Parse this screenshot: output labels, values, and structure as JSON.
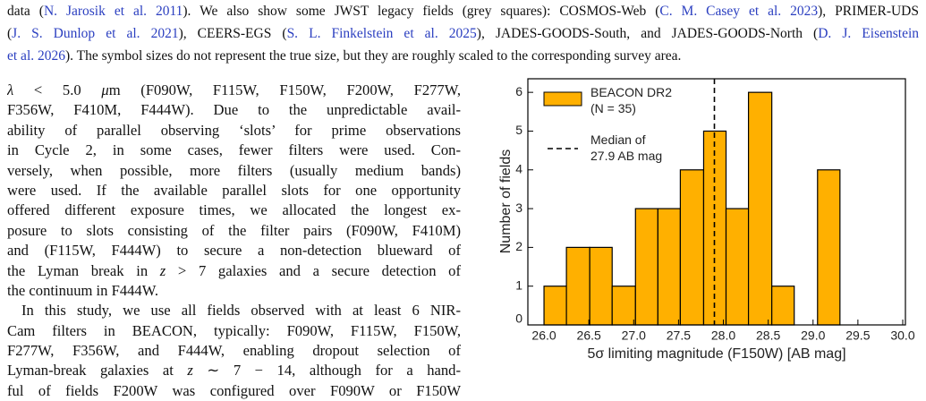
{
  "caption": {
    "lines": [
      [
        {
          "text": "data ("
        },
        {
          "text": "N. Jarosik et al. 2011",
          "cite": true
        },
        {
          "text": "). We also show some JWST legacy fields (grey squares): COSMOS-Web ("
        },
        {
          "text": "C. M. Casey et al. 2023",
          "cite": true
        },
        {
          "text": "), PRIMER-UDS"
        }
      ],
      [
        {
          "text": "("
        },
        {
          "text": "J. S. Dunlop et al. 2021",
          "cite": true
        },
        {
          "text": "), CEERS-EGS ("
        },
        {
          "text": "S. L. Finkelstein et al. 2025",
          "cite": true
        },
        {
          "text": "), JADES-GOODS-South, and JADES-GOODS-North ("
        },
        {
          "text": "D. J. Eisenstein",
          "cite": true
        }
      ],
      [
        {
          "text": "et al. 2026",
          "cite": true
        },
        {
          "text": "). The symbol sizes do not represent the true size, but they are roughly scaled to the corresponding survey area."
        }
      ]
    ]
  },
  "body": {
    "paragraphs": [
      {
        "lines": [
          [
            {
              "text": "λ",
              "italic": true
            },
            {
              "text": " < 5.0 "
            },
            {
              "text": "μ",
              "italic": true
            },
            {
              "text": "m (F090W, F115W, F150W, F200W, F277W,"
            }
          ],
          [
            {
              "text": "F356W, F410M, F444W). Due to the unpredictable avail-"
            }
          ],
          [
            {
              "text": "ability of parallel observing ‘slots’ for prime observations"
            }
          ],
          [
            {
              "text": "in Cycle 2, in some cases, fewer filters were used. Con-"
            }
          ],
          [
            {
              "text": "versely, when possible, more filters (usually medium bands)"
            }
          ],
          [
            {
              "text": "were used. If the available parallel slots for one opportunity"
            }
          ],
          [
            {
              "text": "offered different exposure times, we allocated the longest ex-"
            }
          ],
          [
            {
              "text": "posure to slots consisting of the filter pairs (F090W, F410M)"
            }
          ],
          [
            {
              "text": "and (F115W, F444W) to secure a non-detection blueward of"
            }
          ],
          [
            {
              "text": "the Lyman break in "
            },
            {
              "text": "z",
              "italic": true
            },
            {
              "text": " > 7 galaxies and a secure detection of"
            }
          ],
          [
            {
              "text": "the continuum in F444W."
            }
          ]
        ]
      },
      {
        "lines": [
          [
            {
              "text": "In this study, we use all fields observed with at least 6 NIR-"
            }
          ],
          [
            {
              "text": "Cam filters in BEACON, typically: F090W, F115W, F150W,"
            }
          ],
          [
            {
              "text": "F277W, F356W, and F444W, enabling dropout selection of"
            }
          ],
          [
            {
              "text": "Lyman-break galaxies at "
            },
            {
              "text": "z",
              "italic": true
            },
            {
              "text": " ∼ 7 − 14, although for a hand-"
            }
          ],
          [
            {
              "text": "ful of fields F200W was configured over F090W or F150W"
            }
          ]
        ]
      }
    ]
  },
  "chart_data": {
    "type": "histogram",
    "xlabel": "5σ limiting magnitude (F150W) [AB mag]",
    "ylabel": "Number of fields",
    "bins": [
      26.0,
      26.25,
      26.51,
      26.76,
      27.02,
      27.27,
      27.52,
      27.78,
      28.03,
      28.28,
      28.54,
      28.79,
      29.05,
      29.3
    ],
    "series": [
      {
        "name": "BEACON DR2\n(N = 35)",
        "color": "#ffb000",
        "values": [
          1,
          2,
          2,
          1,
          3,
          3,
          4,
          5,
          3,
          6,
          1,
          0,
          4
        ]
      }
    ],
    "annotations": [
      {
        "value": 27.9,
        "label": "Median of\n27.9 AB mag",
        "style": "dashed",
        "color": "#000000"
      }
    ],
    "xlim": [
      25.82,
      30.03
    ],
    "ylim": [
      0,
      6.35
    ],
    "xticks": [
      {
        "value": 26.0,
        "label": "26.0"
      },
      26.5,
      {
        "value": 27.0,
        "label": "27.0"
      },
      27.5,
      {
        "value": 28.0,
        "label": "28.0"
      },
      28.5,
      {
        "value": 29.0,
        "label": "29.0"
      },
      29.5,
      {
        "value": 30.0,
        "label": "30.0"
      }
    ],
    "yticks": [
      0,
      1,
      2,
      3,
      4,
      5,
      6
    ],
    "legend": "upper left"
  }
}
